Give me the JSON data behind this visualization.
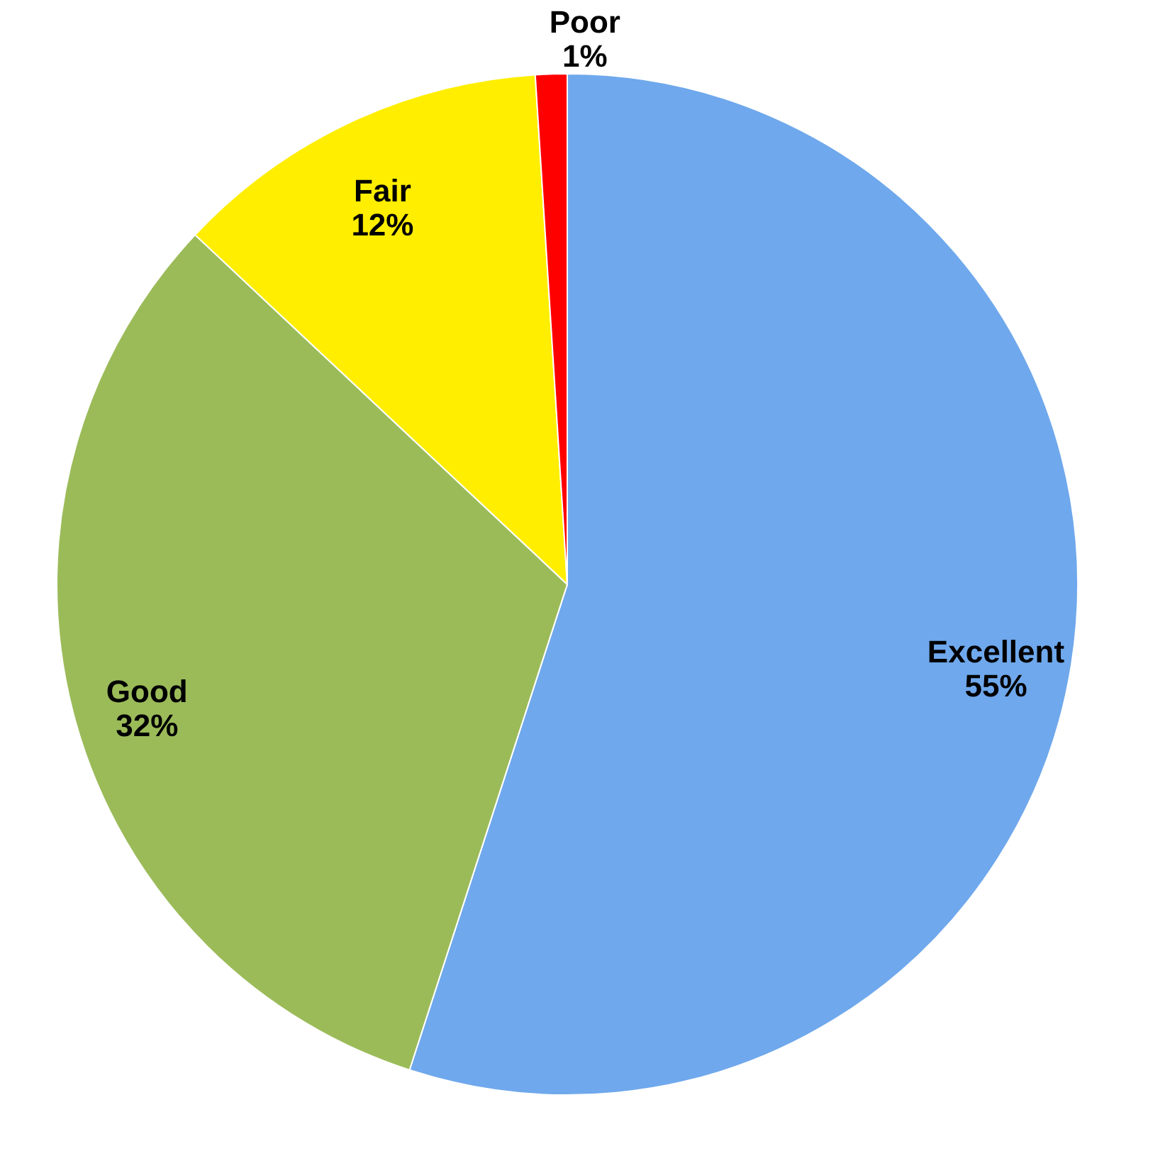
{
  "chart_data": {
    "type": "pie",
    "categories": [
      "Excellent",
      "Good",
      "Fair",
      "Poor"
    ],
    "values": [
      55,
      32,
      12,
      1
    ],
    "colors": [
      "#6fa8ec",
      "#9bbb59",
      "#ffee00",
      "#ff0000"
    ],
    "value_labels": [
      "55%",
      "32%",
      "12%",
      "1%"
    ],
    "legend": false
  }
}
